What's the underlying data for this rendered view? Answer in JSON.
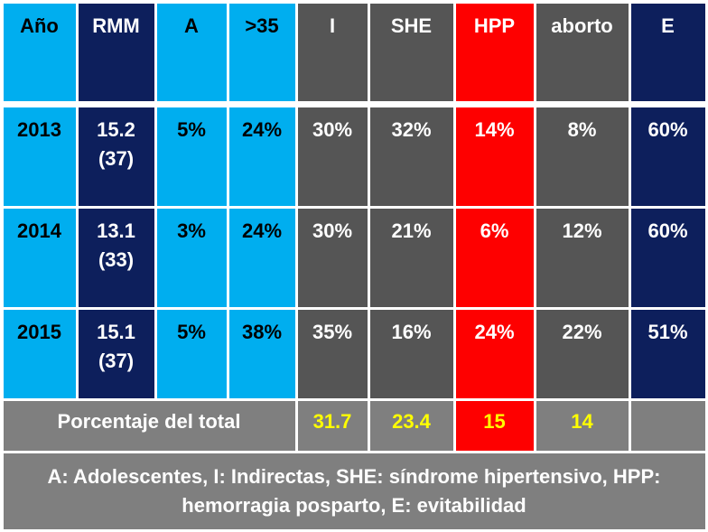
{
  "headers": [
    "Año",
    "RMM",
    "A",
    ">35",
    "I",
    "SHE",
    "HPP",
    "aborto",
    "E"
  ],
  "rows": [
    {
      "year": "2013",
      "rmm": "15.2",
      "rmm_count": "(37)",
      "a": "5%",
      "over35": "24%",
      "i": "30%",
      "she": "32%",
      "hpp": "14%",
      "aborto": "8%",
      "e": "60%"
    },
    {
      "year": "2014",
      "rmm": "13.1",
      "rmm_count": "(33)",
      "a": "3%",
      "over35": "24%",
      "i": "30%",
      "she": "21%",
      "hpp": "6%",
      "aborto": "12%",
      "e": "60%"
    },
    {
      "year": "2015",
      "rmm": "15.1",
      "rmm_count": "(37)",
      "a": "5%",
      "over35": "38%",
      "i": "35%",
      "she": "16%",
      "hpp": "24%",
      "aborto": "22%",
      "e": "51%"
    }
  ],
  "total": {
    "label": "Porcentaje  del total",
    "i": "31.7",
    "she": "23.4",
    "hpp": "15",
    "aborto": "14",
    "e": ""
  },
  "legend": "A: Adolescentes, I: Indirectas, SHE: síndrome hipertensivo, HPP: hemorragia posparto, E: evitabilidad",
  "colors": {
    "light_blue": "#00aeef",
    "navy": "#0d1f5c",
    "gray": "#555555",
    "red": "#fe0000",
    "footer_gray": "#7f7f7f",
    "highlight_yellow": "#ffff00"
  }
}
